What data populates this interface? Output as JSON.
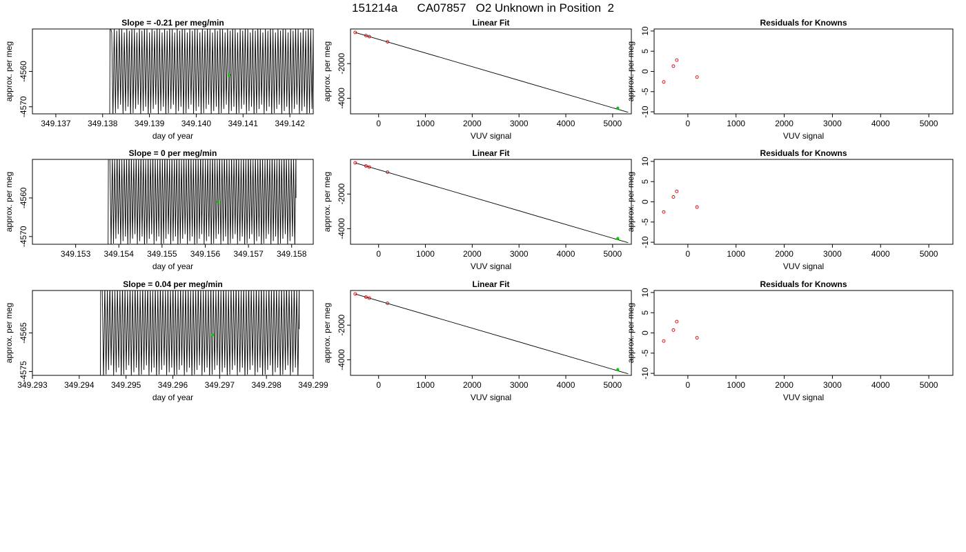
{
  "page": {
    "title": "151214a      CA07857   O2 Unknown in Position  2"
  },
  "colors": {
    "trace": "#000000",
    "known_points": "#cc0000",
    "unknown_point": "#00cc00",
    "frame": "#000000"
  },
  "rows": [
    {
      "timeseries": {
        "title": "Slope =  -0.21  per meg/min",
        "xlabel": "day of year",
        "ylabel": "approx. per meg",
        "xlim": [
          349.1365,
          349.1425
        ],
        "ylim": [
          -4572,
          -4548
        ],
        "xticks": [
          349.137,
          349.138,
          349.139,
          349.14,
          349.141,
          349.142
        ],
        "xtick_labels": [
          "349.137",
          "349.138",
          "349.139",
          "349.140",
          "349.141",
          "349.142"
        ],
        "yticks": [
          -4560,
          -4570
        ],
        "ytick_labels": [
          "-4560",
          "-4570"
        ],
        "trace_start": 349.13815,
        "trace_end": 349.1425,
        "trace_base": -4555,
        "trace_high": -4549,
        "trace_low": -4573,
        "trace_cycles": 80,
        "unknown_point": {
          "x": 349.1407,
          "y": -4561
        }
      },
      "linear_fit": {
        "title": "Linear Fit",
        "xlabel": "VUV signal",
        "ylabel": "approx. per meg",
        "xlim": [
          -600,
          5400
        ],
        "ylim": [
          -4900,
          0
        ],
        "xticks": [
          0,
          1000,
          2000,
          3000,
          4000,
          5000
        ],
        "xtick_labels": [
          "0",
          "1000",
          "2000",
          "3000",
          "4000",
          "5000"
        ],
        "yticks": [
          -2000,
          -4000
        ],
        "ytick_labels": [
          "-2000",
          "-4000"
        ],
        "line": {
          "x": [
            -500,
            5330
          ],
          "y": [
            -200,
            -4810
          ]
        },
        "knowns": {
          "x": [
            -500,
            -270,
            -200,
            190
          ],
          "y": [
            -200,
            -380,
            -440,
            -740
          ]
        },
        "unknown": {
          "x": 5110,
          "y": -4560
        }
      },
      "residuals": {
        "title": "Residuals for Knowns",
        "xlabel": "VUV signal",
        "ylabel": "approx. per meg",
        "xlim": [
          -700,
          5500
        ],
        "ylim": [
          -10.5,
          10.5
        ],
        "xticks": [
          0,
          1000,
          2000,
          3000,
          4000,
          5000
        ],
        "xtick_labels": [
          "0",
          "1000",
          "2000",
          "3000",
          "4000",
          "5000"
        ],
        "yticks": [
          10,
          5,
          0,
          -5,
          -10
        ],
        "ytick_labels": [
          "10",
          "5",
          "0",
          "-5",
          "-10"
        ],
        "points": {
          "x": [
            -500,
            -300,
            -230,
            190
          ],
          "y": [
            -2.6,
            1.3,
            2.8,
            -1.4
          ]
        }
      }
    },
    {
      "timeseries": {
        "title": "Slope =  0  per meg/min",
        "xlabel": "day of year",
        "ylabel": "approx. per meg",
        "xlim": [
          349.152,
          349.1585
        ],
        "ylim": [
          -4572,
          -4550
        ],
        "xticks": [
          349.153,
          349.154,
          349.155,
          349.156,
          349.157,
          349.158
        ],
        "xtick_labels": [
          "349.153",
          "349.154",
          "349.155",
          "349.156",
          "349.157",
          "349.158"
        ],
        "yticks": [
          -4560,
          -4570
        ],
        "ytick_labels": [
          "-4560",
          "-4570"
        ],
        "trace_start": 349.15375,
        "trace_end": 349.1581,
        "trace_base": -4556,
        "trace_high": -4550,
        "trace_low": -4573,
        "trace_cycles": 78,
        "unknown_point": {
          "x": 349.1563,
          "y": -4561
        }
      },
      "linear_fit": {
        "title": "Linear Fit",
        "xlabel": "VUV signal",
        "ylabel": "approx. per meg",
        "xlim": [
          -600,
          5400
        ],
        "ylim": [
          -4900,
          0
        ],
        "xticks": [
          0,
          1000,
          2000,
          3000,
          4000,
          5000
        ],
        "xtick_labels": [
          "0",
          "1000",
          "2000",
          "3000",
          "4000",
          "5000"
        ],
        "yticks": [
          -2000,
          -4000
        ],
        "ytick_labels": [
          "-2000",
          "-4000"
        ],
        "line": {
          "x": [
            -500,
            5330
          ],
          "y": [
            -200,
            -4810
          ]
        },
        "knowns": {
          "x": [
            -500,
            -270,
            -200,
            190
          ],
          "y": [
            -200,
            -380,
            -440,
            -740
          ]
        },
        "unknown": {
          "x": 5110,
          "y": -4560
        }
      },
      "residuals": {
        "title": "Residuals for Knowns",
        "xlabel": "VUV signal",
        "ylabel": "approx. per meg",
        "xlim": [
          -700,
          5500
        ],
        "ylim": [
          -10.5,
          10.5
        ],
        "xticks": [
          0,
          1000,
          2000,
          3000,
          4000,
          5000
        ],
        "xtick_labels": [
          "0",
          "1000",
          "2000",
          "3000",
          "4000",
          "5000"
        ],
        "yticks": [
          10,
          5,
          0,
          -5,
          -10
        ],
        "ytick_labels": [
          "10",
          "5",
          "0",
          "-5",
          "-10"
        ],
        "points": {
          "x": [
            -500,
            -300,
            -230,
            190
          ],
          "y": [
            -2.5,
            1.2,
            2.6,
            -1.3
          ]
        }
      }
    },
    {
      "timeseries": {
        "title": "Slope =  0.04  per meg/min",
        "xlabel": "day of year",
        "ylabel": "approx. per meg",
        "xlim": [
          349.293,
          349.299
        ],
        "ylim": [
          -4576,
          -4554
        ],
        "xticks": [
          349.293,
          349.294,
          349.295,
          349.296,
          349.297,
          349.298,
          349.299
        ],
        "xtick_labels": [
          "349.293",
          "349.294",
          "349.295",
          "349.296",
          "349.297",
          "349.298",
          "349.299"
        ],
        "yticks": [
          -4565,
          -4575
        ],
        "ytick_labels": [
          "-4565",
          "-4575"
        ],
        "trace_start": 349.29445,
        "trace_end": 349.2987,
        "trace_base": -4560,
        "trace_high": -4554,
        "trace_low": -4577,
        "trace_cycles": 78,
        "unknown_point": {
          "x": 349.29685,
          "y": -4565.5
        }
      },
      "linear_fit": {
        "title": "Linear Fit",
        "xlabel": "VUV signal",
        "ylabel": "approx. per meg",
        "xlim": [
          -600,
          5400
        ],
        "ylim": [
          -4900,
          0
        ],
        "xticks": [
          0,
          1000,
          2000,
          3000,
          4000,
          5000
        ],
        "xtick_labels": [
          "0",
          "1000",
          "2000",
          "3000",
          "4000",
          "5000"
        ],
        "yticks": [
          -2000,
          -4000
        ],
        "ytick_labels": [
          "-2000",
          "-4000"
        ],
        "line": {
          "x": [
            -500,
            5330
          ],
          "y": [
            -200,
            -4810
          ]
        },
        "knowns": {
          "x": [
            -500,
            -270,
            -200,
            190
          ],
          "y": [
            -200,
            -380,
            -440,
            -740
          ]
        },
        "unknown": {
          "x": 5110,
          "y": -4560
        }
      },
      "residuals": {
        "title": "Residuals for Knowns",
        "xlabel": "VUV signal",
        "ylabel": "approx. per meg",
        "xlim": [
          -700,
          5500
        ],
        "ylim": [
          -10.5,
          10.5
        ],
        "xticks": [
          0,
          1000,
          2000,
          3000,
          4000,
          5000
        ],
        "xtick_labels": [
          "0",
          "1000",
          "2000",
          "3000",
          "4000",
          "5000"
        ],
        "yticks": [
          10,
          5,
          0,
          -5,
          -10
        ],
        "ytick_labels": [
          "10",
          "5",
          "0",
          "-5",
          "-10"
        ],
        "points": {
          "x": [
            -500,
            -300,
            -230,
            190
          ],
          "y": [
            -2.0,
            0.7,
            2.8,
            -1.2
          ]
        }
      }
    }
  ],
  "chart_data": [
    {
      "type": "line",
      "title": "Slope =  -0.21  per meg/min",
      "xlabel": "day of year",
      "ylabel": "approx. per meg",
      "xlim": [
        349.1365,
        349.1425
      ],
      "ylim": [
        -4572,
        -4548
      ],
      "series": [
        {
          "values_description_free": true,
          "x_range": [
            349.13815,
            349.1425
          ],
          "y_range": [
            -4573,
            -4549
          ]
        }
      ],
      "unknown_point": {
        "x": 349.1407,
        "y": -4561
      }
    },
    {
      "type": "scatter",
      "title": "Linear Fit",
      "xlabel": "VUV signal",
      "ylabel": "approx. per meg",
      "knowns": {
        "x": [
          -500,
          -270,
          -200,
          190
        ],
        "y": [
          -200,
          -380,
          -440,
          -740
        ]
      },
      "unknown": {
        "x": 5110,
        "y": -4560
      },
      "fit_line": {
        "x": [
          -500,
          5330
        ],
        "y": [
          -200,
          -4810
        ]
      }
    },
    {
      "type": "scatter",
      "title": "Residuals for Knowns",
      "xlabel": "VUV signal",
      "ylabel": "approx. per meg",
      "x": [
        -500,
        -300,
        -230,
        190
      ],
      "y": [
        -2.6,
        1.3,
        2.8,
        -1.4
      ],
      "ylim": [
        -10.5,
        10.5
      ]
    },
    {
      "type": "line",
      "title": "Slope =  0  per meg/min",
      "xlabel": "day of year",
      "ylabel": "approx. per meg",
      "xlim": [
        349.152,
        349.1585
      ],
      "ylim": [
        -4572,
        -4550
      ],
      "unknown_point": {
        "x": 349.1563,
        "y": -4561
      }
    },
    {
      "type": "scatter",
      "title": "Linear Fit",
      "xlabel": "VUV signal",
      "ylabel": "approx. per meg",
      "knowns": {
        "x": [
          -500,
          -270,
          -200,
          190
        ],
        "y": [
          -200,
          -380,
          -440,
          -740
        ]
      },
      "unknown": {
        "x": 5110,
        "y": -4560
      },
      "fit_line": {
        "x": [
          -500,
          5330
        ],
        "y": [
          -200,
          -4810
        ]
      }
    },
    {
      "type": "scatter",
      "title": "Residuals for Knowns",
      "xlabel": "VUV signal",
      "ylabel": "approx. per meg",
      "x": [
        -500,
        -300,
        -230,
        190
      ],
      "y": [
        -2.5,
        1.2,
        2.6,
        -1.3
      ],
      "ylim": [
        -10.5,
        10.5
      ]
    },
    {
      "type": "line",
      "title": "Slope =  0.04  per meg/min",
      "xlabel": "day of year",
      "ylabel": "approx. per meg",
      "xlim": [
        349.293,
        349.299
      ],
      "ylim": [
        -4576,
        -4554
      ],
      "unknown_point": {
        "x": 349.29685,
        "y": -4565.5
      }
    },
    {
      "type": "scatter",
      "title": "Linear Fit",
      "xlabel": "VUV signal",
      "ylabel": "approx. per meg",
      "knowns": {
        "x": [
          -500,
          -270,
          -200,
          190
        ],
        "y": [
          -200,
          -380,
          -440,
          -740
        ]
      },
      "unknown": {
        "x": 5110,
        "y": -4560
      },
      "fit_line": {
        "x": [
          -500,
          5330
        ],
        "y": [
          -200,
          -4810
        ]
      }
    },
    {
      "type": "scatter",
      "title": "Residuals for Knowns",
      "xlabel": "VUV signal",
      "ylabel": "approx. per meg",
      "x": [
        -500,
        -300,
        -230,
        190
      ],
      "y": [
        -2.0,
        0.7,
        2.8,
        -1.2
      ],
      "ylim": [
        -10.5,
        10.5
      ]
    }
  ]
}
